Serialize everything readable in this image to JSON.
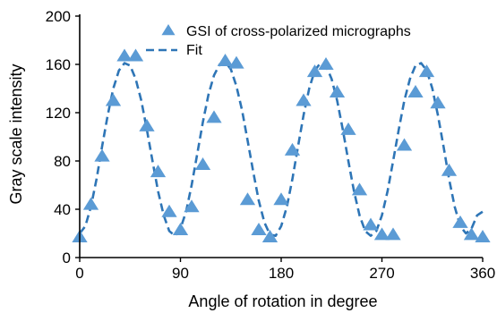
{
  "chart_data": {
    "type": "scatter",
    "xlabel": "Angle of rotation in degree",
    "ylabel": "Gray scale intensity",
    "xlim": [
      0,
      360
    ],
    "ylim": [
      0,
      200
    ],
    "xticks": [
      0,
      90,
      180,
      270,
      360
    ],
    "yticks": [
      0,
      40,
      80,
      120,
      160,
      200
    ],
    "grid": false,
    "legend_position": "top-right",
    "colors": {
      "marker": "#5b9bd5",
      "fit": "#2e75b6"
    },
    "series": [
      {
        "name": "GSI of cross-polarized micrographs",
        "style": "triangle-markers",
        "x": [
          0,
          10,
          20,
          30,
          40,
          50,
          60,
          70,
          80,
          90,
          100,
          110,
          120,
          130,
          140,
          150,
          160,
          170,
          180,
          190,
          200,
          210,
          220,
          230,
          240,
          250,
          260,
          270,
          280,
          290,
          300,
          310,
          320,
          330,
          340,
          350,
          360
        ],
        "y": [
          17,
          44,
          84,
          130,
          167,
          167,
          109,
          71,
          38,
          23,
          42,
          77,
          116,
          163,
          161,
          48,
          23,
          17,
          48,
          89,
          130,
          154,
          160,
          137,
          106,
          56,
          27,
          19,
          19,
          93,
          137,
          154,
          128,
          72,
          29,
          19,
          17
        ]
      },
      {
        "name": "Fit",
        "style": "dashed-line",
        "x": [
          0,
          5,
          10,
          15,
          20,
          25,
          30,
          35,
          40,
          45,
          50,
          55,
          60,
          65,
          70,
          75,
          80,
          85,
          90,
          95,
          100,
          105,
          110,
          115,
          120,
          125,
          130,
          135,
          140,
          145,
          150,
          155,
          160,
          165,
          170,
          175,
          180,
          185,
          190,
          195,
          200,
          205,
          210,
          215,
          220,
          225,
          230,
          235,
          240,
          245,
          250,
          255,
          260,
          265,
          270,
          275,
          280,
          285,
          290,
          295,
          300,
          305,
          310,
          315,
          320,
          325,
          330,
          335,
          340,
          345,
          350,
          355,
          360
        ],
        "y": [
          20,
          26,
          42,
          65,
          92,
          118,
          140,
          155,
          161,
          159,
          148,
          130,
          106,
          80,
          55,
          35,
          22,
          18,
          24,
          38,
          60,
          86,
          112,
          135,
          151,
          160,
          162,
          156,
          142,
          122,
          97,
          71,
          47,
          29,
          19,
          18,
          26,
          42,
          65,
          92,
          118,
          140,
          155,
          161,
          159,
          148,
          130,
          106,
          80,
          55,
          35,
          22,
          18,
          22,
          35,
          55,
          80,
          106,
          130,
          148,
          159,
          161,
          155,
          140,
          118,
          92,
          65,
          42,
          26,
          20,
          24,
          35,
          38
        ]
      }
    ]
  }
}
